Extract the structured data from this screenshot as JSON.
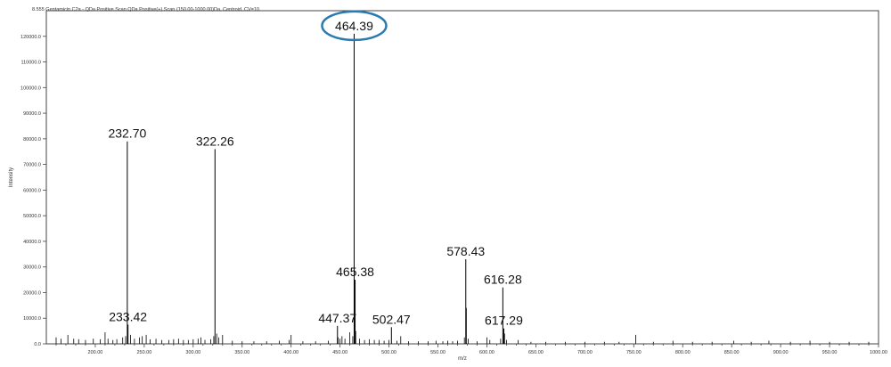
{
  "chart_data": {
    "type": "bar",
    "header": "8.555 Gentamicin C2a - QDa Positive Scan QDa Positive(+) Scan (150.00-1000.00)Da, Centroid, CV=10",
    "xlabel": "m/z",
    "ylabel": "Intensity",
    "xlim": [
      150,
      1000
    ],
    "ylim": [
      0,
      130000
    ],
    "x_ticks": [
      200,
      250,
      300,
      350,
      400,
      450,
      500,
      550,
      600,
      650,
      700,
      750,
      800,
      850,
      900,
      950,
      1000
    ],
    "x_tick_labels": [
      "200.00",
      "250.00",
      "300.00",
      "350.00",
      "400.00",
      "450.00",
      "500.00",
      "550.00",
      "600.00",
      "650.00",
      "700.00",
      "750.00",
      "800.00",
      "850.00",
      "900.00",
      "950.00",
      "1000.00"
    ],
    "y_ticks": [
      0,
      10000,
      20000,
      30000,
      40000,
      50000,
      60000,
      70000,
      80000,
      90000,
      100000,
      110000,
      120000
    ],
    "y_tick_labels": [
      "0.0",
      "10000.0",
      "20000.0",
      "30000.0",
      "40000.0",
      "50000.0",
      "60000.0",
      "70000.0",
      "80000.0",
      "90000.0",
      "100000.0",
      "110000.0",
      "120000.0"
    ],
    "labeled_peaks": [
      {
        "label": "232.70",
        "x": 232.7,
        "y": 79000
      },
      {
        "label": "233.42",
        "x": 233.42,
        "y": 7500
      },
      {
        "label": "322.26",
        "x": 322.26,
        "y": 76000
      },
      {
        "label": "447.37",
        "x": 447.37,
        "y": 7000
      },
      {
        "label": "464.39",
        "x": 464.39,
        "y": 121000,
        "highlighted": true
      },
      {
        "label": "465.38",
        "x": 465.38,
        "y": 25000
      },
      {
        "label": "502.47",
        "x": 502.47,
        "y": 6500
      },
      {
        "label": "578.43",
        "x": 578.43,
        "y": 33000
      },
      {
        "label": "616.28",
        "x": 616.28,
        "y": 22000
      },
      {
        "label": "617.29",
        "x": 617.29,
        "y": 6000
      }
    ],
    "minor_peaks": [
      {
        "x": 160,
        "y": 2500
      },
      {
        "x": 165,
        "y": 2000
      },
      {
        "x": 172,
        "y": 3500
      },
      {
        "x": 178,
        "y": 2000
      },
      {
        "x": 183,
        "y": 1800
      },
      {
        "x": 190,
        "y": 1500
      },
      {
        "x": 198,
        "y": 2000
      },
      {
        "x": 205,
        "y": 1800
      },
      {
        "x": 210,
        "y": 4500
      },
      {
        "x": 213,
        "y": 2000
      },
      {
        "x": 218,
        "y": 1500
      },
      {
        "x": 222,
        "y": 1800
      },
      {
        "x": 228,
        "y": 2500
      },
      {
        "x": 231,
        "y": 3000
      },
      {
        "x": 236,
        "y": 3500
      },
      {
        "x": 240,
        "y": 2000
      },
      {
        "x": 245,
        "y": 2500
      },
      {
        "x": 248,
        "y": 3000
      },
      {
        "x": 252,
        "y": 3500
      },
      {
        "x": 256,
        "y": 1800
      },
      {
        "x": 262,
        "y": 2000
      },
      {
        "x": 268,
        "y": 1500
      },
      {
        "x": 275,
        "y": 1500
      },
      {
        "x": 280,
        "y": 1800
      },
      {
        "x": 285,
        "y": 2000
      },
      {
        "x": 290,
        "y": 1500
      },
      {
        "x": 295,
        "y": 1500
      },
      {
        "x": 300,
        "y": 1800
      },
      {
        "x": 305,
        "y": 2000
      },
      {
        "x": 308,
        "y": 2500
      },
      {
        "x": 312,
        "y": 1500
      },
      {
        "x": 318,
        "y": 1800
      },
      {
        "x": 321,
        "y": 3000
      },
      {
        "x": 324,
        "y": 4000
      },
      {
        "x": 326,
        "y": 2500
      },
      {
        "x": 330,
        "y": 3500
      },
      {
        "x": 340,
        "y": 1200
      },
      {
        "x": 350,
        "y": 1000
      },
      {
        "x": 362,
        "y": 1000
      },
      {
        "x": 375,
        "y": 1000
      },
      {
        "x": 388,
        "y": 1200
      },
      {
        "x": 398,
        "y": 1500
      },
      {
        "x": 400,
        "y": 3500
      },
      {
        "x": 412,
        "y": 1000
      },
      {
        "x": 425,
        "y": 1000
      },
      {
        "x": 438,
        "y": 1200
      },
      {
        "x": 448,
        "y": 2500
      },
      {
        "x": 450,
        "y": 2000
      },
      {
        "x": 452,
        "y": 3000
      },
      {
        "x": 455,
        "y": 2000
      },
      {
        "x": 460,
        "y": 4500
      },
      {
        "x": 463,
        "y": 3000
      },
      {
        "x": 466,
        "y": 5000
      },
      {
        "x": 470,
        "y": 2000
      },
      {
        "x": 475,
        "y": 1500
      },
      {
        "x": 480,
        "y": 1800
      },
      {
        "x": 485,
        "y": 1500
      },
      {
        "x": 490,
        "y": 1500
      },
      {
        "x": 495,
        "y": 1200
      },
      {
        "x": 500,
        "y": 1500
      },
      {
        "x": 508,
        "y": 1200
      },
      {
        "x": 512,
        "y": 3000
      },
      {
        "x": 520,
        "y": 1000
      },
      {
        "x": 530,
        "y": 1000
      },
      {
        "x": 540,
        "y": 1000
      },
      {
        "x": 548,
        "y": 1200
      },
      {
        "x": 555,
        "y": 1000
      },
      {
        "x": 560,
        "y": 1200
      },
      {
        "x": 565,
        "y": 1000
      },
      {
        "x": 570,
        "y": 1200
      },
      {
        "x": 577,
        "y": 2500
      },
      {
        "x": 579,
        "y": 14000
      },
      {
        "x": 581,
        "y": 2000
      },
      {
        "x": 590,
        "y": 1000
      },
      {
        "x": 600,
        "y": 2500
      },
      {
        "x": 603,
        "y": 1500
      },
      {
        "x": 614,
        "y": 2000
      },
      {
        "x": 618,
        "y": 4000
      },
      {
        "x": 620,
        "y": 1500
      },
      {
        "x": 632,
        "y": 1500
      },
      {
        "x": 645,
        "y": 800
      },
      {
        "x": 660,
        "y": 800
      },
      {
        "x": 680,
        "y": 800
      },
      {
        "x": 700,
        "y": 800
      },
      {
        "x": 720,
        "y": 800
      },
      {
        "x": 735,
        "y": 800
      },
      {
        "x": 752,
        "y": 3500
      },
      {
        "x": 770,
        "y": 800
      },
      {
        "x": 790,
        "y": 1200
      },
      {
        "x": 810,
        "y": 800
      },
      {
        "x": 830,
        "y": 800
      },
      {
        "x": 852,
        "y": 1200
      },
      {
        "x": 870,
        "y": 800
      },
      {
        "x": 888,
        "y": 1200
      },
      {
        "x": 910,
        "y": 800
      },
      {
        "x": 930,
        "y": 1200
      },
      {
        "x": 950,
        "y": 800
      },
      {
        "x": 970,
        "y": 800
      },
      {
        "x": 990,
        "y": 800
      }
    ]
  }
}
